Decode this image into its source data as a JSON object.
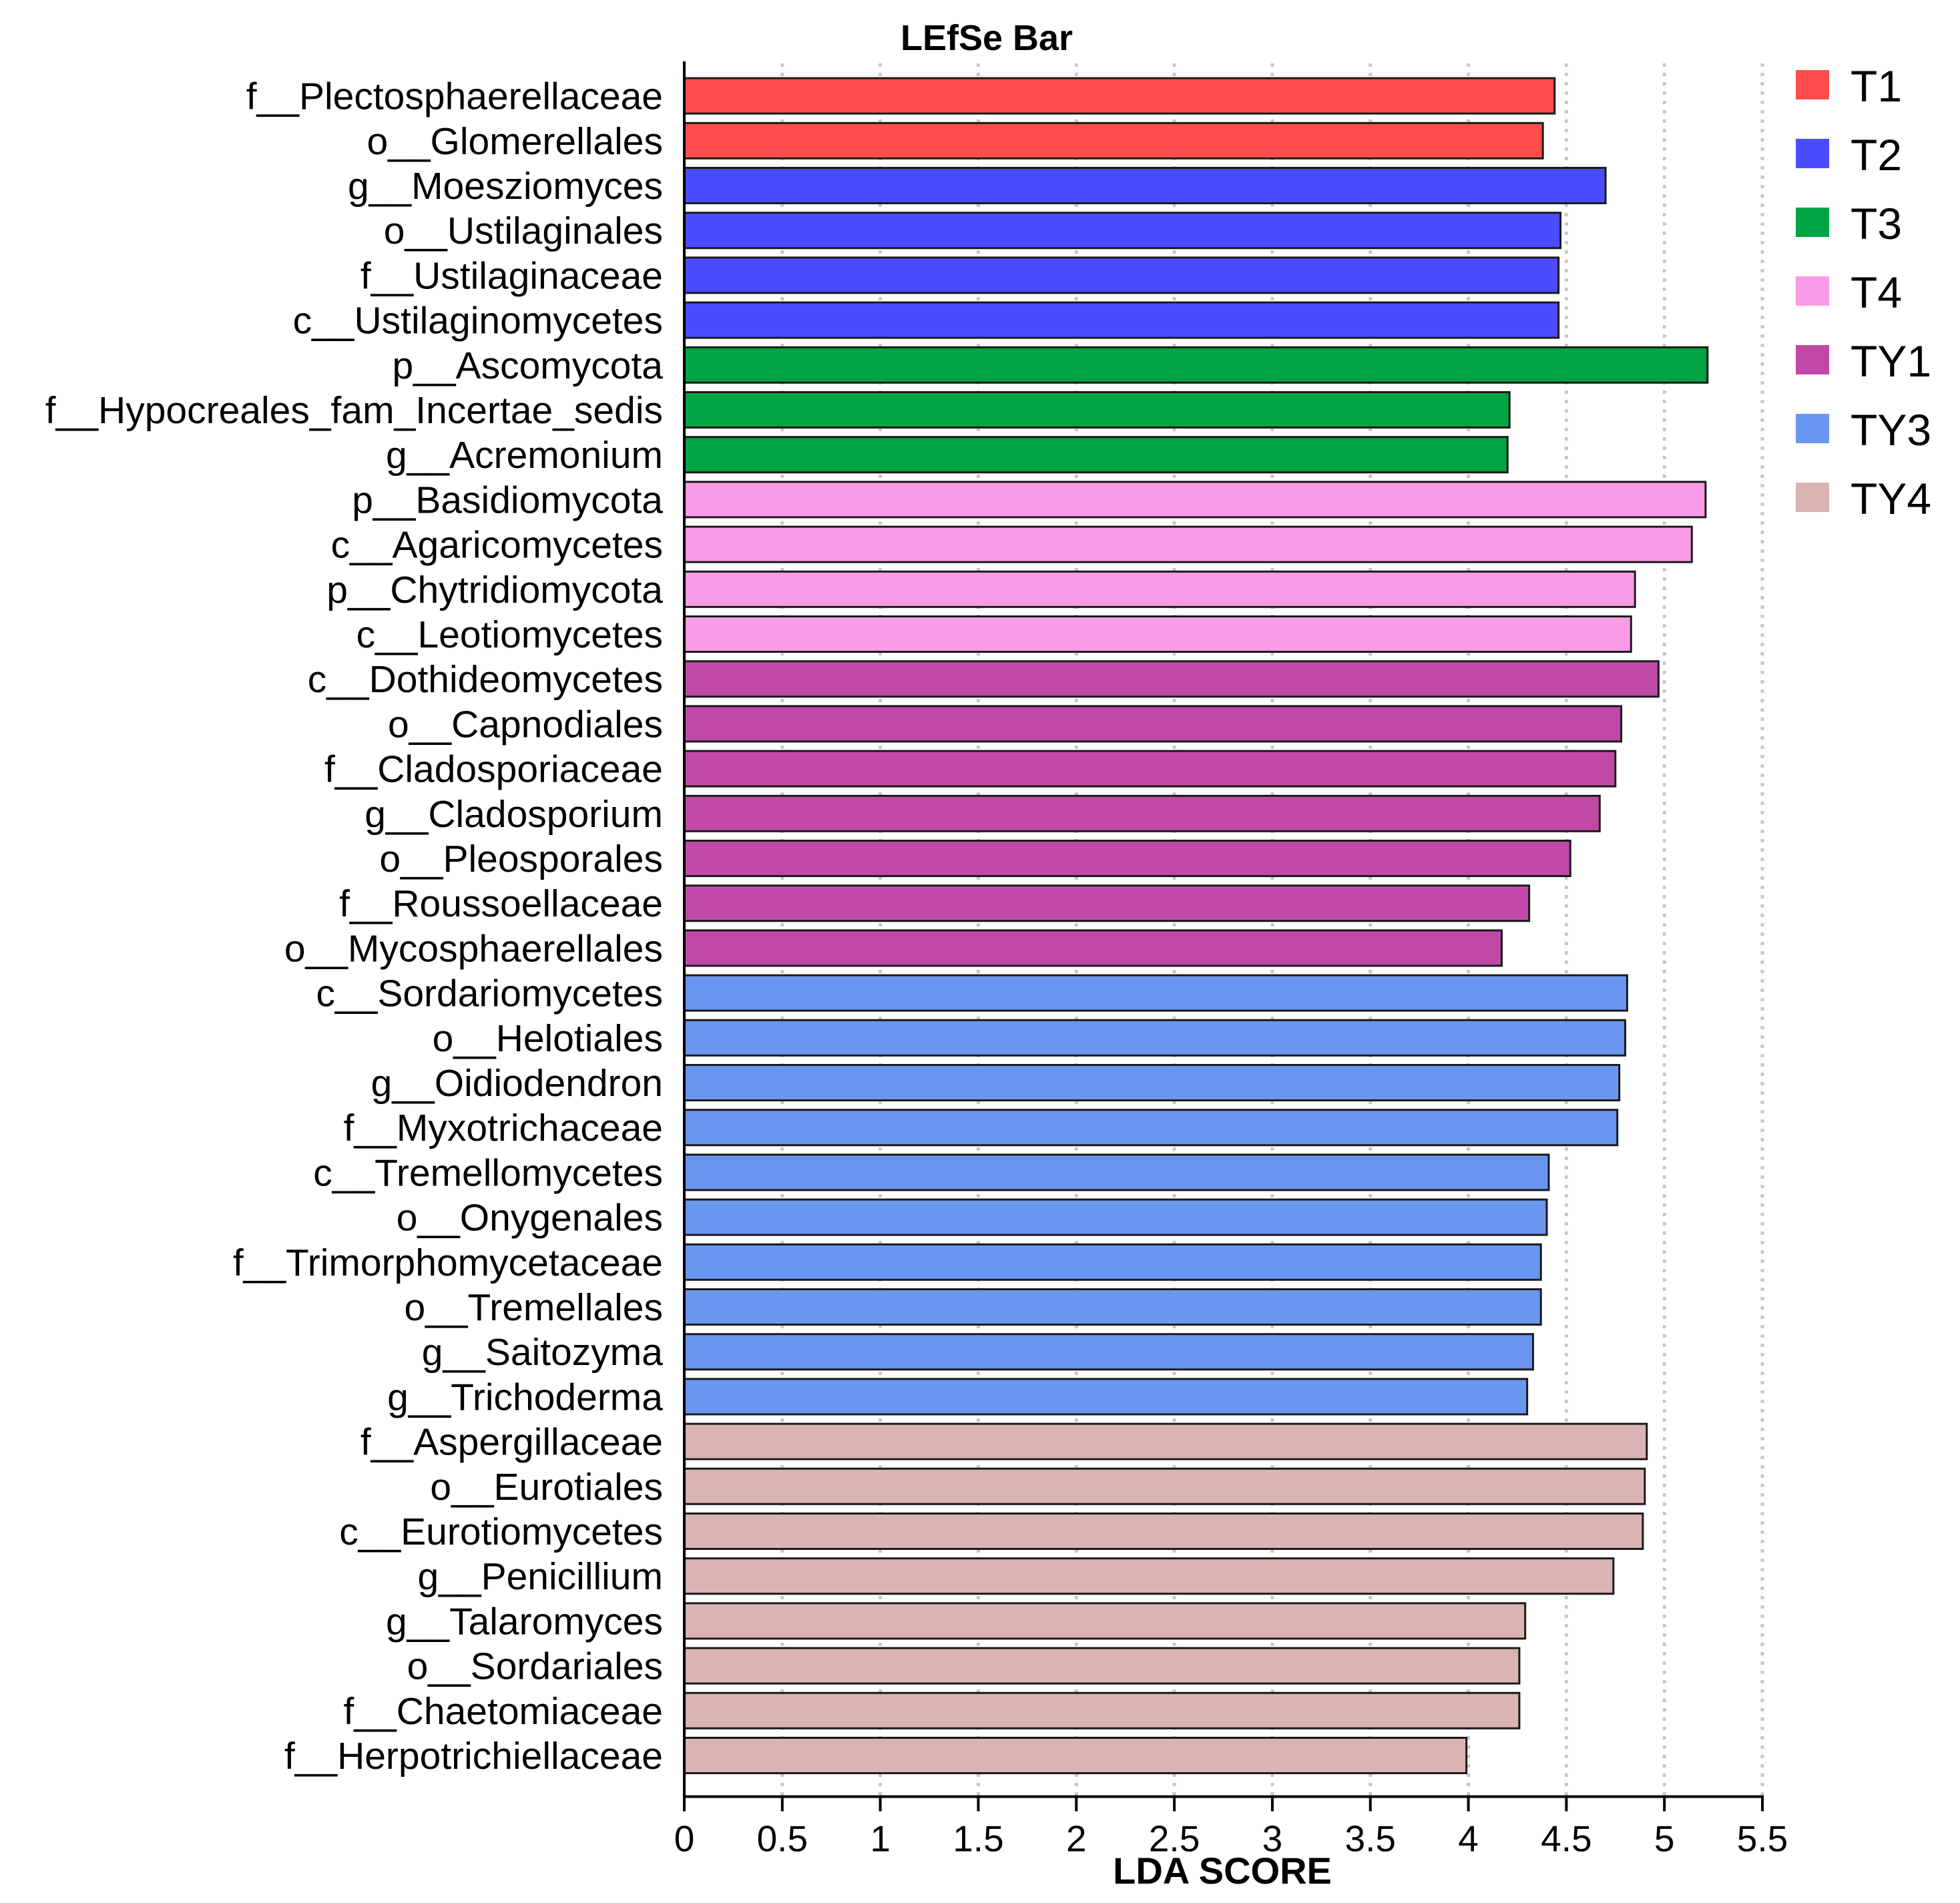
{
  "chart_data": {
    "type": "bar",
    "orientation": "horizontal",
    "title": "LEfSe Bar",
    "xlabel": "LDA SCORE",
    "ylabel": "",
    "xlim": [
      0,
      5.5
    ],
    "xticks": [
      0,
      0.5,
      1,
      1.5,
      2,
      2.5,
      3,
      3.5,
      4,
      4.5,
      5,
      5.5
    ],
    "tick_labels": [
      "0",
      "0.5",
      "1",
      "1.5",
      "2",
      "2.5",
      "3",
      "3.5",
      "4",
      "4.5",
      "5",
      "5.5"
    ],
    "grid": "vertical dotted lines at each tick",
    "legend_position": "top-right",
    "groups": [
      {
        "name": "T1",
        "color": "#ff4d4d"
      },
      {
        "name": "T2",
        "color": "#4c4cff"
      },
      {
        "name": "T3",
        "color": "#00a442"
      },
      {
        "name": "T4",
        "color": "#f99be6"
      },
      {
        "name": "TY1",
        "color": "#c049a8"
      },
      {
        "name": "TY3",
        "color": "#6b96ef"
      },
      {
        "name": "TY4",
        "color": "#dbb3b3"
      }
    ],
    "bars": [
      {
        "label": "f__Plectosphaerellaceae",
        "value": 4.44,
        "group": "T1"
      },
      {
        "label": "o__Glomerellales",
        "value": 4.38,
        "group": "T1"
      },
      {
        "label": "g__Moesziomyces",
        "value": 4.7,
        "group": "T2"
      },
      {
        "label": "o__Ustilaginales",
        "value": 4.47,
        "group": "T2"
      },
      {
        "label": "f__Ustilaginaceae",
        "value": 4.46,
        "group": "T2"
      },
      {
        "label": "c__Ustilaginomycetes",
        "value": 4.46,
        "group": "T2"
      },
      {
        "label": "p__Ascomycota",
        "value": 5.22,
        "group": "T3"
      },
      {
        "label": "f__Hypocreales_fam_Incertae_sedis",
        "value": 4.21,
        "group": "T3"
      },
      {
        "label": "g__Acremonium",
        "value": 4.2,
        "group": "T3"
      },
      {
        "label": "p__Basidiomycota",
        "value": 5.21,
        "group": "T4"
      },
      {
        "label": "c__Agaricomycetes",
        "value": 5.14,
        "group": "T4"
      },
      {
        "label": "p__Chytridiomycota",
        "value": 4.85,
        "group": "T4"
      },
      {
        "label": "c__Leotiomycetes",
        "value": 4.83,
        "group": "T4"
      },
      {
        "label": "c__Dothideomycetes",
        "value": 4.97,
        "group": "TY1"
      },
      {
        "label": "o__Capnodiales",
        "value": 4.78,
        "group": "TY1"
      },
      {
        "label": "f__Cladosporiaceae",
        "value": 4.75,
        "group": "TY1"
      },
      {
        "label": "g__Cladosporium",
        "value": 4.67,
        "group": "TY1"
      },
      {
        "label": "o__Pleosporales",
        "value": 4.52,
        "group": "TY1"
      },
      {
        "label": "f__Roussoellaceae",
        "value": 4.31,
        "group": "TY1"
      },
      {
        "label": "o__Mycosphaerellales",
        "value": 4.17,
        "group": "TY1"
      },
      {
        "label": "c__Sordariomycetes",
        "value": 4.81,
        "group": "TY3"
      },
      {
        "label": "o__Helotiales",
        "value": 4.8,
        "group": "TY3"
      },
      {
        "label": "g__Oidiodendron",
        "value": 4.77,
        "group": "TY3"
      },
      {
        "label": "f__Myxotrichaceae",
        "value": 4.76,
        "group": "TY3"
      },
      {
        "label": "c__Tremellomycetes",
        "value": 4.41,
        "group": "TY3"
      },
      {
        "label": "o__Onygenales",
        "value": 4.4,
        "group": "TY3"
      },
      {
        "label": "f__Trimorphomycetaceae",
        "value": 4.37,
        "group": "TY3"
      },
      {
        "label": "o__Tremellales",
        "value": 4.37,
        "group": "TY3"
      },
      {
        "label": "g__Saitozyma",
        "value": 4.33,
        "group": "TY3"
      },
      {
        "label": "g__Trichoderma",
        "value": 4.3,
        "group": "TY3"
      },
      {
        "label": "f__Aspergillaceae",
        "value": 4.91,
        "group": "TY4"
      },
      {
        "label": "o__Eurotiales",
        "value": 4.9,
        "group": "TY4"
      },
      {
        "label": "c__Eurotiomycetes",
        "value": 4.89,
        "group": "TY4"
      },
      {
        "label": "g__Penicillium",
        "value": 4.74,
        "group": "TY4"
      },
      {
        "label": "g__Talaromyces",
        "value": 4.29,
        "group": "TY4"
      },
      {
        "label": "o__Sordariales",
        "value": 4.26,
        "group": "TY4"
      },
      {
        "label": "f__Chaetomiaceae",
        "value": 4.26,
        "group": "TY4"
      },
      {
        "label": "f__Herpotrichiellaceae",
        "value": 3.99,
        "group": "TY4"
      }
    ]
  }
}
